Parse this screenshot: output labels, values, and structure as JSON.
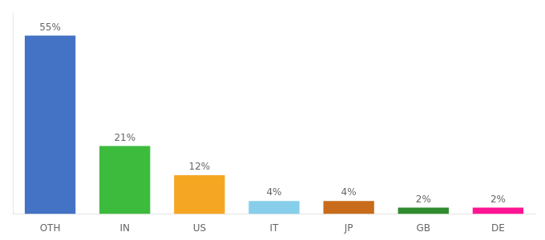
{
  "chart_data": {
    "type": "bar",
    "categories": [
      "OTH",
      "IN",
      "US",
      "IT",
      "JP",
      "GB",
      "DE"
    ],
    "values": [
      55,
      21,
      12,
      4,
      4,
      2,
      2
    ],
    "value_labels": [
      "55%",
      "21%",
      "12%",
      "4%",
      "4%",
      "2%",
      "2%"
    ],
    "colors": [
      "#4472c4",
      "#3dbb3d",
      "#f5a623",
      "#87ceeb",
      "#c86b1a",
      "#2e8b2e",
      "#ff1493"
    ],
    "ylim": [
      0,
      62
    ],
    "data_labels": true,
    "tick_labels": "x",
    "grid": false
  }
}
